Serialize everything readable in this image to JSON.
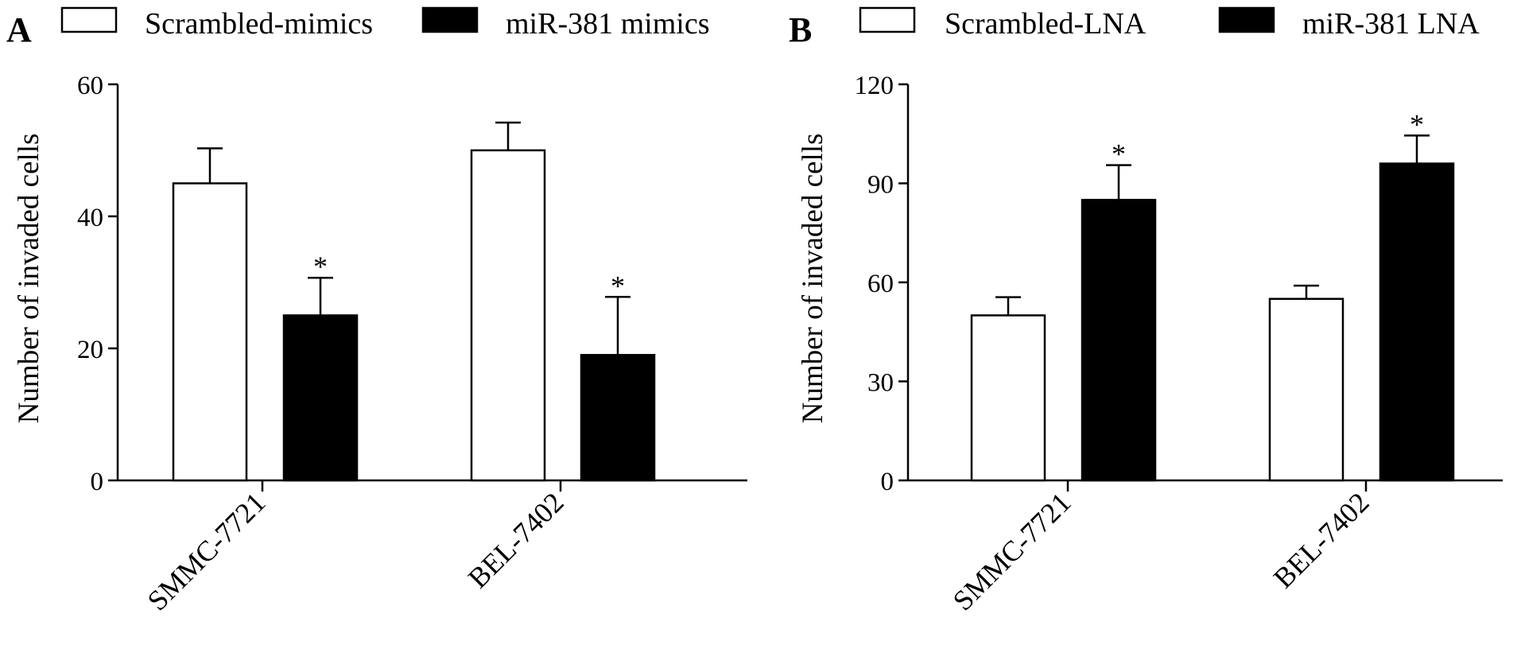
{
  "chart_data": [
    {
      "type": "bar",
      "panel_label": "A",
      "ylabel": "Number of invaded cells",
      "ylim": [
        0,
        60
      ],
      "yticks": [
        0,
        20,
        40,
        60
      ],
      "categories": [
        "SMMC-7721",
        "BEL-7402"
      ],
      "series": [
        {
          "name": "Scrambled-mimics",
          "values": [
            45,
            50
          ],
          "errors": [
            5.3,
            4.2
          ],
          "fill": "#ffffff",
          "significance": [
            "",
            ""
          ]
        },
        {
          "name": "miR-381 mimics",
          "values": [
            25,
            19
          ],
          "errors": [
            5.7,
            8.8
          ],
          "fill": "#000000",
          "significance": [
            "*",
            "*"
          ]
        }
      ],
      "legend_position": "top"
    },
    {
      "type": "bar",
      "panel_label": "B",
      "ylabel": "Number of invaded cells",
      "ylim": [
        0,
        120
      ],
      "yticks": [
        0,
        30,
        60,
        90,
        120
      ],
      "categories": [
        "SMMC-7721",
        "BEL-7402"
      ],
      "series": [
        {
          "name": "Scrambled-LNA",
          "values": [
            50,
            55
          ],
          "errors": [
            5.5,
            4.0
          ],
          "fill": "#ffffff",
          "significance": [
            "",
            ""
          ]
        },
        {
          "name": "miR-381 LNA",
          "values": [
            85,
            96
          ],
          "errors": [
            10.5,
            8.5
          ],
          "fill": "#000000",
          "significance": [
            "*",
            "*"
          ]
        }
      ],
      "legend_position": "top"
    }
  ]
}
